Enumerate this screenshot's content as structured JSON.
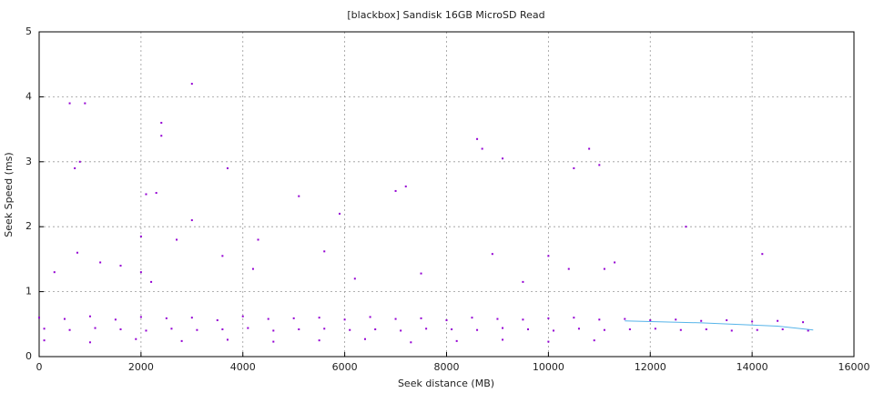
{
  "chart_data": {
    "type": "scatter",
    "title": "[blackbox] Sandisk 16GB MicroSD Read",
    "x_label": "Seek distance (MB)",
    "y_label": "Seek Speed (ms)",
    "xlim": [
      0,
      16000
    ],
    "ylim": [
      0,
      5
    ],
    "xticks": [
      0,
      2000,
      4000,
      6000,
      8000,
      10000,
      12000,
      14000,
      16000
    ],
    "yticks": [
      0,
      1,
      2,
      3,
      4,
      5
    ],
    "grid": true,
    "series": [
      {
        "type": "scatter",
        "color": "#9400d3",
        "x": [
          0,
          500,
          1000,
          1500,
          2000,
          2500,
          3000,
          3500,
          4000,
          4500,
          5000,
          5500,
          6000,
          6500,
          7000,
          7500,
          8000,
          8500,
          9000,
          9500,
          10000,
          10500,
          11000,
          11500,
          12000,
          12500,
          13000,
          13500,
          14000,
          14500,
          15000
        ],
        "values": [
          0.6,
          0.58,
          0.62,
          0.57,
          0.61,
          0.59,
          0.6,
          0.56,
          0.62,
          0.58,
          0.59,
          0.6,
          0.57,
          0.61,
          0.58,
          0.59,
          0.56,
          0.6,
          0.58,
          0.57,
          0.59,
          0.6,
          0.57,
          0.58,
          0.56,
          0.57,
          0.55,
          0.56,
          0.54,
          0.55,
          0.53
        ]
      },
      {
        "type": "scatter",
        "color": "#9400d3",
        "x": [
          100,
          600,
          1100,
          1600,
          2100,
          2600,
          3100,
          3600,
          4100,
          4600,
          5100,
          5600,
          6100,
          6600,
          7100,
          7600,
          8100,
          8600,
          9100,
          9600,
          10100,
          10600,
          11100,
          11600,
          12100,
          12600,
          13100,
          13600,
          14100,
          14600,
          15100
        ],
        "values": [
          0.43,
          0.41,
          0.44,
          0.42,
          0.4,
          0.43,
          0.41,
          0.42,
          0.44,
          0.4,
          0.42,
          0.43,
          0.41,
          0.42,
          0.4,
          0.43,
          0.42,
          0.41,
          0.44,
          0.42,
          0.4,
          0.43,
          0.41,
          0.42,
          0.43,
          0.41,
          0.42,
          0.4,
          0.41,
          0.42,
          0.4
        ]
      },
      {
        "type": "scatter",
        "color": "#9400d3",
        "x": [
          100,
          1000,
          1900,
          2800,
          3700,
          4600,
          5500,
          6400,
          7300,
          8200,
          9100,
          10000,
          10900
        ],
        "values": [
          0.25,
          0.22,
          0.27,
          0.24,
          0.26,
          0.23,
          0.25,
          0.27,
          0.22,
          0.24,
          0.26,
          0.23,
          0.25
        ]
      },
      {
        "type": "scatter",
        "color": "#9400d3",
        "x": [
          600,
          900,
          3000,
          2400,
          2400,
          800,
          700,
          3700,
          8600,
          8700,
          10800,
          9100,
          10500,
          11000,
          2100,
          2300,
          7000,
          7200,
          5100,
          3000,
          12700,
          2000,
          2700,
          4300,
          5900,
          750,
          3600,
          5600,
          8900,
          10000,
          11300,
          11100,
          14200,
          1200,
          300,
          1600,
          2000,
          7500,
          9500,
          4200,
          2200,
          6200,
          10400
        ],
        "values": [
          3.9,
          3.9,
          4.2,
          3.6,
          3.4,
          3.0,
          2.9,
          2.9,
          3.35,
          3.2,
          3.2,
          3.05,
          2.9,
          2.95,
          2.5,
          2.52,
          2.55,
          2.62,
          2.47,
          2.1,
          2.0,
          1.85,
          1.8,
          1.8,
          2.2,
          1.6,
          1.55,
          1.62,
          1.58,
          1.55,
          1.45,
          1.35,
          1.58,
          1.45,
          1.3,
          1.4,
          1.3,
          1.28,
          1.15,
          1.35,
          1.15,
          1.2,
          1.35
        ]
      },
      {
        "type": "line",
        "color": "#56b4e9",
        "x": [
          11500,
          13000,
          14500,
          15200
        ],
        "values": [
          0.55,
          0.52,
          0.47,
          0.41
        ]
      }
    ]
  }
}
